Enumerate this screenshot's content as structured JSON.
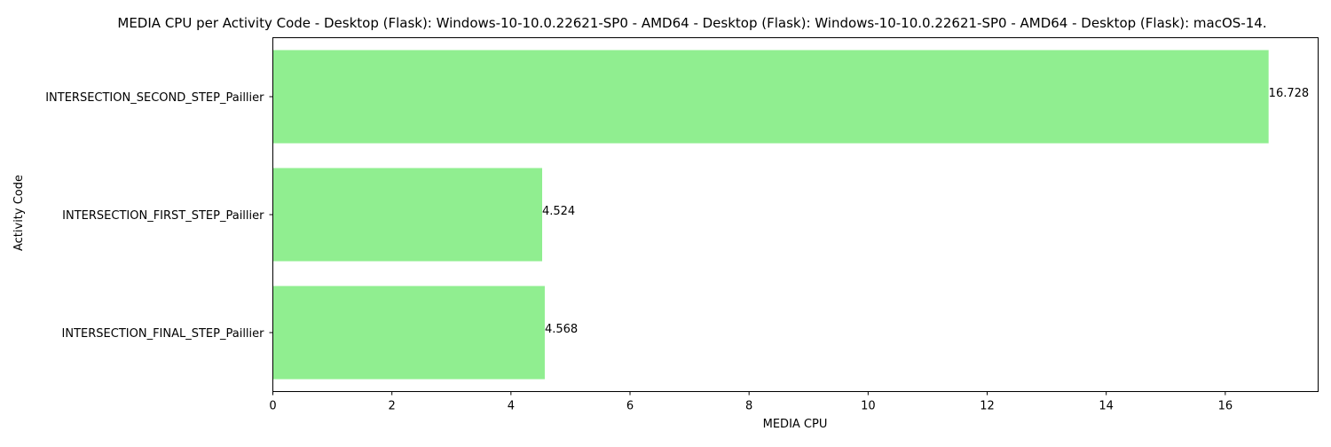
{
  "chart_data": {
    "type": "bar",
    "orientation": "horizontal",
    "title": "MEDIA CPU per Activity Code - Desktop (Flask): Windows-10-10.0.22621-SP0 - AMD64 - Desktop (Flask): Windows-10-10.0.22621-SP0 - AMD64 - Desktop (Flask): macOS-14.",
    "xlabel": "MEDIA CPU",
    "ylabel": "Activity Code",
    "categories": [
      "INTERSECTION_SECOND_STEP_Paillier",
      "INTERSECTION_FIRST_STEP_Paillier",
      "INTERSECTION_FINAL_STEP_Paillier"
    ],
    "values": [
      16.728,
      4.524,
      4.568
    ],
    "value_labels": [
      "16.728",
      "4.524",
      "4.568"
    ],
    "xlim": [
      0,
      17.56
    ],
    "xticks": [
      0,
      2,
      4,
      6,
      8,
      10,
      12,
      14,
      16
    ],
    "xtick_labels": [
      "0",
      "2",
      "4",
      "6",
      "8",
      "10",
      "12",
      "14",
      "16"
    ],
    "bar_color": "#90ee90",
    "grid": false,
    "legend": "none"
  }
}
